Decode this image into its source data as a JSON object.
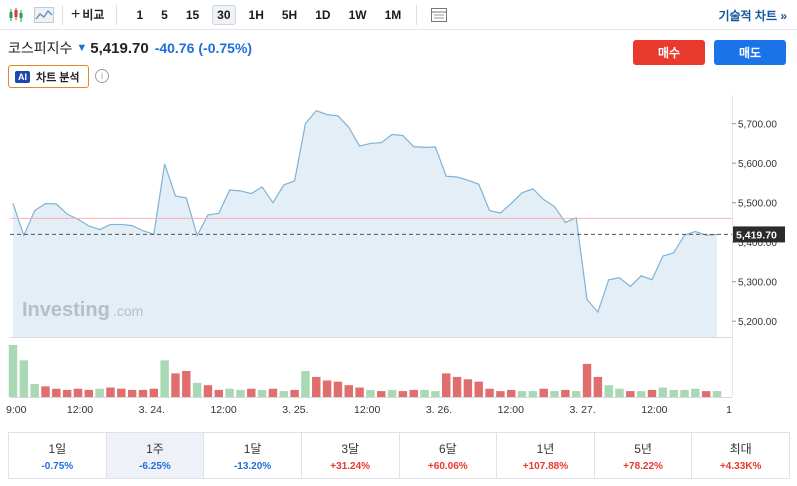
{
  "toolbar": {
    "compare_label": "비교",
    "intervals": [
      "1",
      "5",
      "15",
      "30",
      "1H",
      "5H",
      "1D",
      "1W",
      "1M"
    ],
    "active_interval": "30",
    "tech_chart_label": "기술적 차트 »"
  },
  "header": {
    "name": "코스피지수",
    "price": "5,419.70",
    "change": "-40.76",
    "change_pct": "(-0.75%)",
    "buy_label": "매수",
    "sell_label": "매도",
    "ai_badge": "AI",
    "ai_label": "차트 분석",
    "info_glyph": "i"
  },
  "watermark": {
    "main": "Investing",
    "suffix": ".com"
  },
  "chart_data": {
    "type": "area",
    "y_ticks": [
      5200,
      5300,
      5400,
      5500,
      5600,
      5700
    ],
    "y_tick_labels": [
      "5,200.00",
      "5,300.00",
      "5,400.00",
      "5,500.00",
      "5,600.00",
      "5,700.00"
    ],
    "ylim": [
      5160,
      5760
    ],
    "current_price": 5419.7,
    "current_price_label": "5,419.70",
    "reference_price": 5460.46,
    "x_labels": [
      "9:00",
      "12:00",
      "3. 24.",
      "12:00",
      "3. 25.",
      "12:00",
      "3. 26.",
      "12:00",
      "3. 27.",
      "12:00",
      "1"
    ],
    "prices": [
      5498,
      5417,
      5480,
      5498,
      5497,
      5471,
      5458,
      5441,
      5432,
      5445,
      5445,
      5442,
      5429,
      5420,
      5598,
      5517,
      5512,
      5417,
      5469,
      5473,
      5532,
      5530,
      5523,
      5540,
      5500,
      5545,
      5555,
      5700,
      5733,
      5723,
      5720,
      5691,
      5643,
      5650,
      5652,
      5673,
      5670,
      5642,
      5640,
      5641,
      5567,
      5565,
      5557,
      5547,
      5480,
      5474,
      5498,
      5525,
      5535,
      5508,
      5490,
      5450,
      5462,
      5255,
      5223,
      5305,
      5310,
      5288,
      5315,
      5305,
      5365,
      5373,
      5418,
      5427,
      5418,
      5419
    ],
    "volumes": [
      44,
      31,
      11,
      9,
      7,
      6,
      7,
      6,
      7,
      8,
      7,
      6,
      6,
      7,
      31,
      20,
      22,
      12,
      10,
      6,
      7,
      6,
      7,
      6,
      7,
      5,
      6,
      22,
      17,
      14,
      13,
      10,
      8,
      6,
      5,
      6,
      5,
      6,
      6,
      5,
      20,
      17,
      15,
      13,
      7,
      5,
      6,
      5,
      5,
      7,
      5,
      6,
      5,
      28,
      17,
      10,
      7,
      5,
      5,
      6,
      8,
      6,
      6,
      7,
      5,
      5
    ],
    "volume_up": [
      true,
      true,
      true,
      false,
      false,
      false,
      false,
      false,
      true,
      false,
      false,
      false,
      false,
      false,
      true,
      false,
      false,
      true,
      false,
      false,
      true,
      true,
      false,
      true,
      false,
      true,
      false,
      true,
      false,
      false,
      false,
      false,
      false,
      true,
      false,
      true,
      false,
      false,
      true,
      true,
      false,
      false,
      false,
      false,
      false,
      false,
      false,
      true,
      true,
      false,
      true,
      false,
      true,
      false,
      false,
      true,
      true,
      false,
      true,
      false,
      true,
      true,
      true,
      true,
      false,
      true
    ],
    "colors": {
      "line": "#7fb3d5",
      "fill": "#e3eef7",
      "up": "#a9d8b4",
      "down": "#e06e6e",
      "ref": "#f2b5b0",
      "dash": "#555555"
    }
  },
  "periods": [
    {
      "label": "1일",
      "value": "-0.75%",
      "dir": "neg"
    },
    {
      "label": "1주",
      "value": "-6.25%",
      "dir": "neg",
      "active": true
    },
    {
      "label": "1달",
      "value": "-13.20%",
      "dir": "neg"
    },
    {
      "label": "3달",
      "value": "+31.24%",
      "dir": "pos"
    },
    {
      "label": "6달",
      "value": "+60.06%",
      "dir": "pos"
    },
    {
      "label": "1년",
      "value": "+107.88%",
      "dir": "pos"
    },
    {
      "label": "5년",
      "value": "+78.22%",
      "dir": "pos"
    },
    {
      "label": "최대",
      "value": "+4.33K%",
      "dir": "pos"
    }
  ]
}
